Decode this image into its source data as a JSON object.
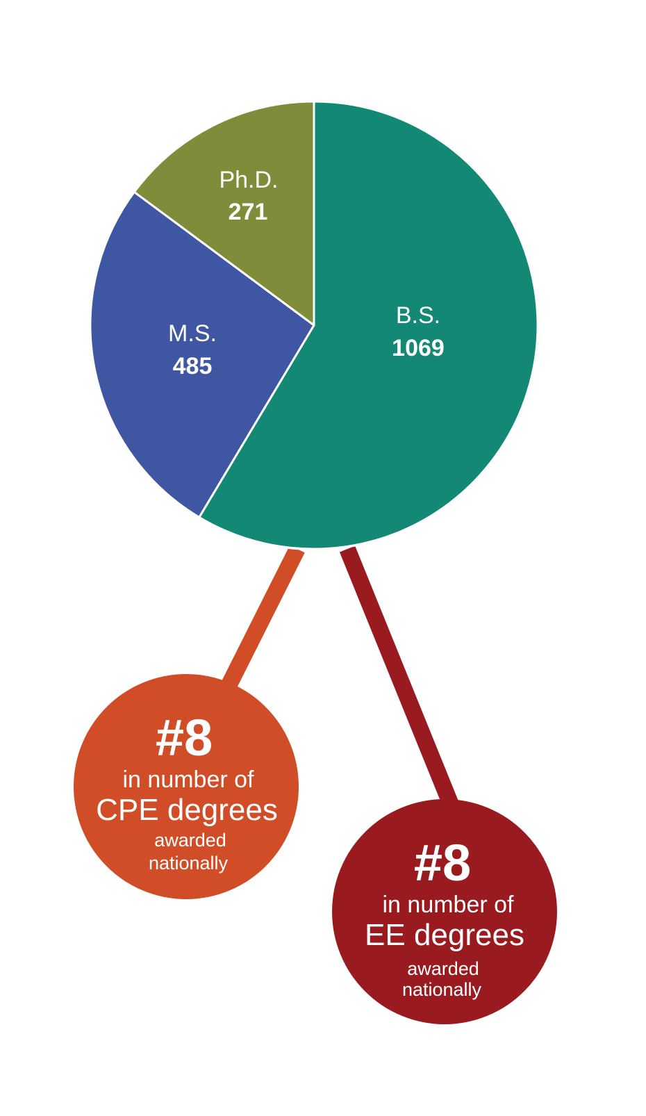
{
  "chart_data": {
    "type": "pie",
    "categories": [
      "B.S.",
      "M.S.",
      "Ph.D."
    ],
    "values": [
      1069,
      485,
      271
    ],
    "colors": {
      "B.S.": "#128875",
      "M.S.": "#3f57a3",
      "Ph.D.": "#7f8c39"
    },
    "start": "12 o'clock, clockwise"
  },
  "slices": [
    {
      "label": "B.S.",
      "value": "1069"
    },
    {
      "label": "M.S.",
      "value": "485"
    },
    {
      "label": "Ph.D.",
      "value": "271"
    }
  ],
  "badges": [
    {
      "rank": "#8",
      "line1": "in number of",
      "line2": "CPE degrees",
      "line3": "awarded",
      "line4": "nationally",
      "color": "#d04d27"
    },
    {
      "rank": "#8",
      "line1": "in number of",
      "line2": "EE degrees",
      "line3": "awarded",
      "line4": "nationally",
      "color": "#991b20"
    }
  ]
}
